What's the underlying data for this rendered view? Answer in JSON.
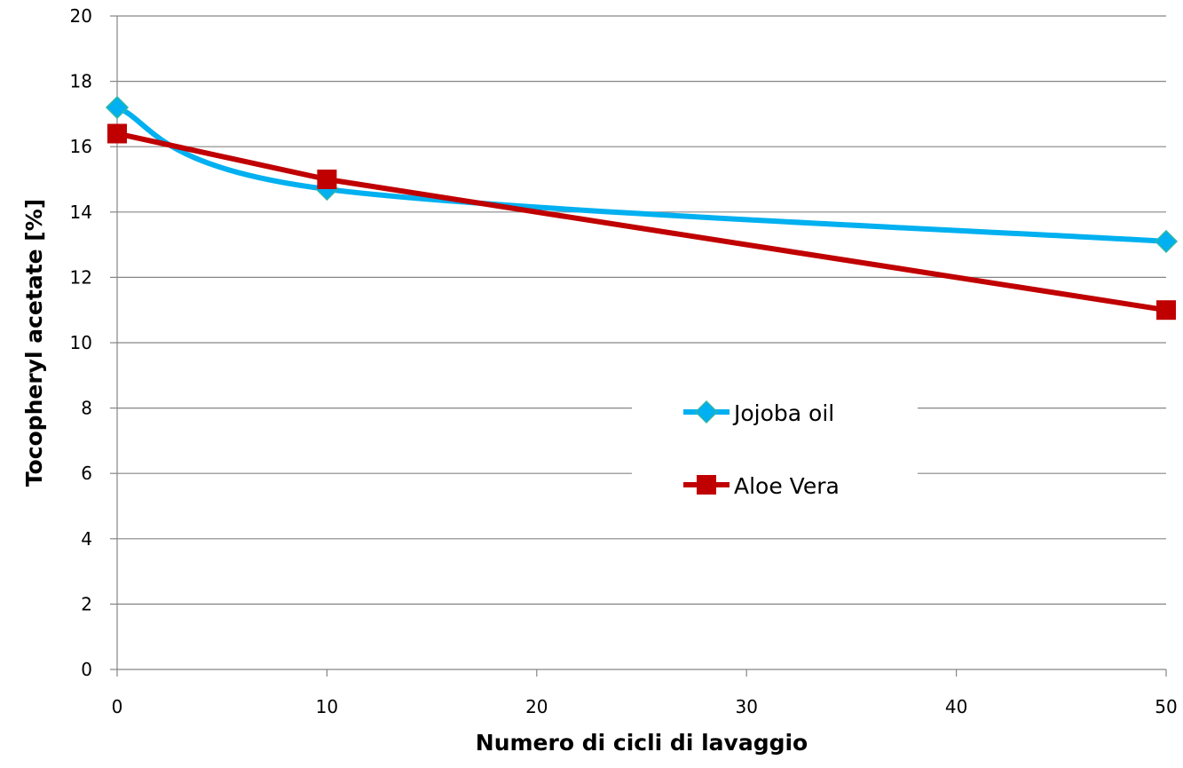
{
  "chart_data": {
    "type": "line",
    "xlabel": "Numero di cicli di lavaggio",
    "ylabel": "Tocopheryl acetate [%]",
    "xlim": [
      0,
      50
    ],
    "ylim": [
      0,
      20
    ],
    "x_ticks": [
      "0",
      "10",
      "20",
      "30",
      "40",
      "50"
    ],
    "y_ticks": [
      "0",
      "2",
      "4",
      "6",
      "8",
      "10",
      "12",
      "14",
      "16",
      "18",
      "20"
    ],
    "grid": "horizontal",
    "legend_position": "center-right",
    "series": [
      {
        "name": "Jojoba oil",
        "color": "#00B0F0",
        "marker": "diamond",
        "smooth": true,
        "x": [
          0,
          10,
          50
        ],
        "y": [
          17.2,
          14.7,
          13.1
        ]
      },
      {
        "name": "Aloe Vera",
        "color": "#C00000",
        "marker": "square",
        "smooth": false,
        "x": [
          0,
          10,
          50
        ],
        "y": [
          16.4,
          15.0,
          11.0
        ]
      }
    ]
  }
}
